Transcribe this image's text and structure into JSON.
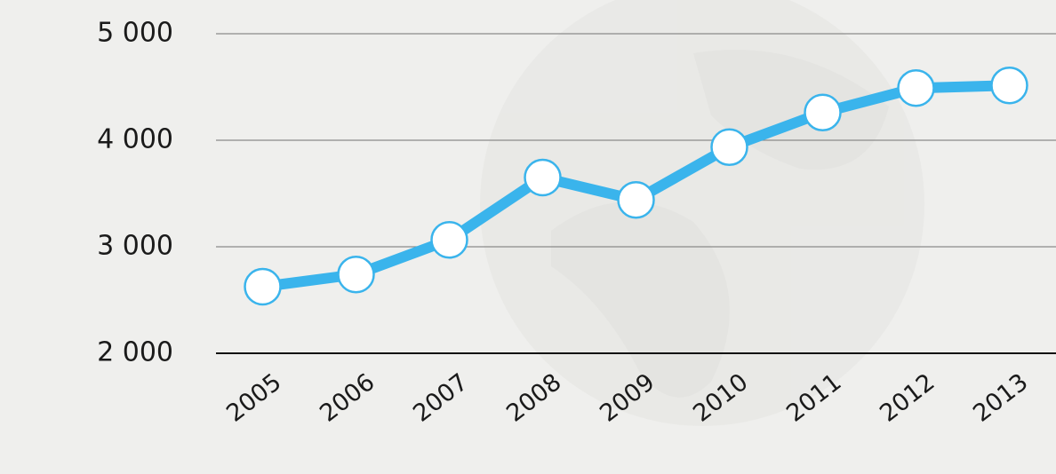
{
  "chart_data": {
    "type": "line",
    "categories": [
      "2005",
      "2006",
      "2007",
      "2008",
      "2009",
      "2010",
      "2011",
      "2012",
      "2013"
    ],
    "series": [
      {
        "color": "#3ab4ec",
        "values": [
          2625,
          2740,
          3065,
          3650,
          3440,
          3935,
          4260,
          4490,
          4515
        ]
      }
    ],
    "ylim": [
      2000,
      5000
    ],
    "yticks": [
      {
        "value": 2000,
        "label": "2 000"
      },
      {
        "value": 3000,
        "label": "3 000"
      },
      {
        "value": 4000,
        "label": "4 000"
      },
      {
        "value": 5000,
        "label": "5 000"
      }
    ],
    "grid": true
  }
}
